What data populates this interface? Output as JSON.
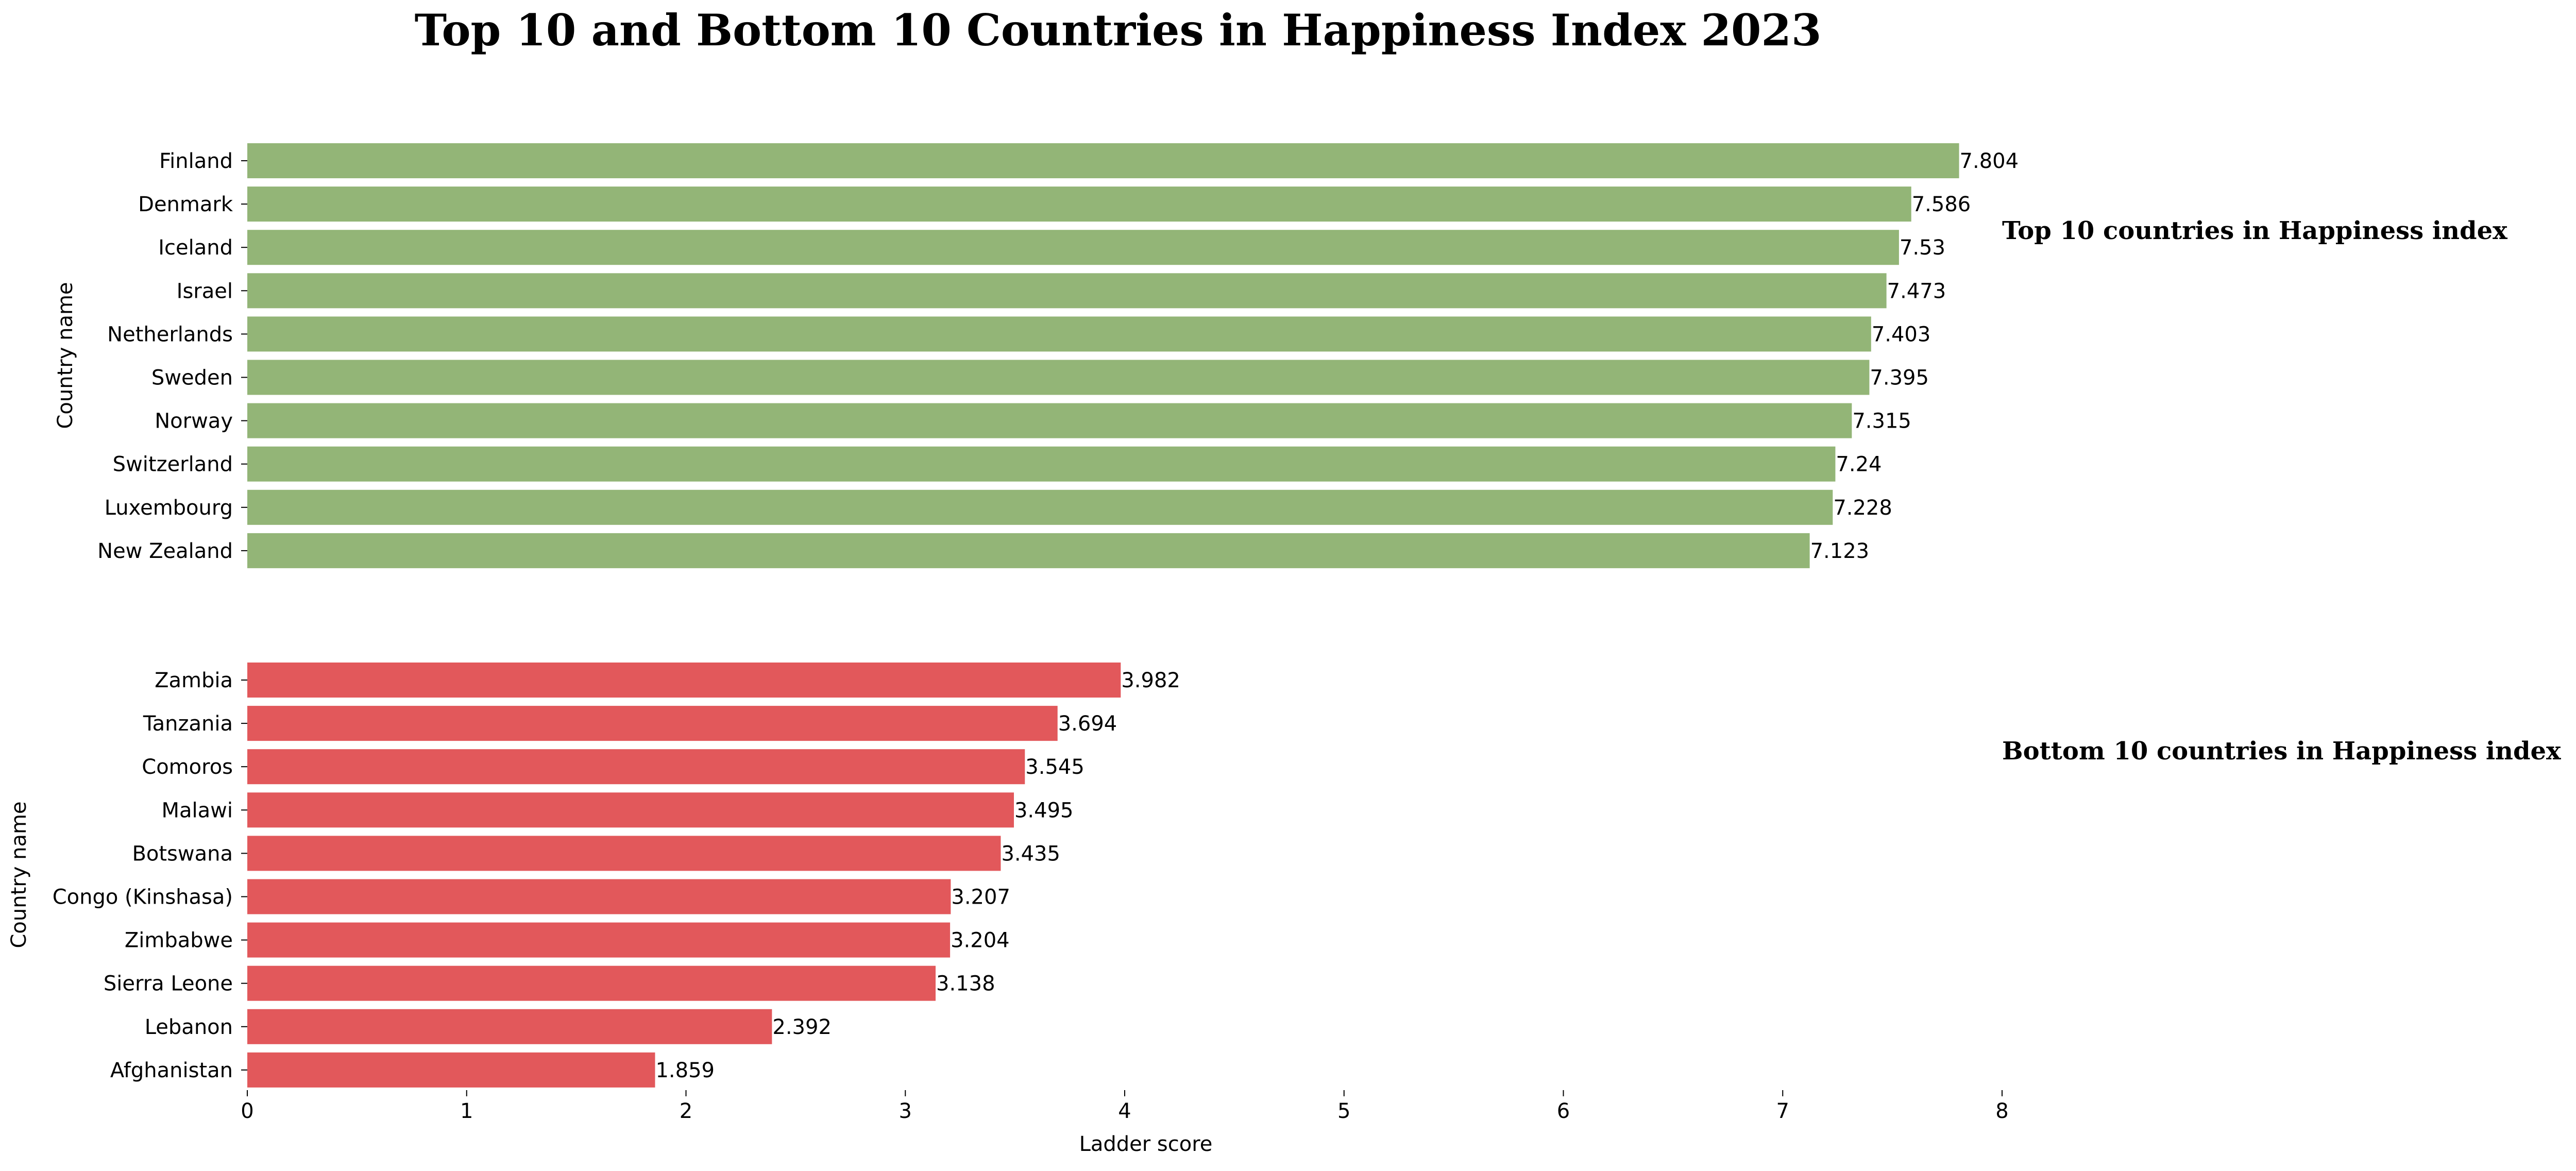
{
  "chart_data": {
    "type": "bar",
    "orientation": "horizontal",
    "title": "Top 10 and Bottom 10 Countries in Happiness Index 2023",
    "xlabel": "Ladder score",
    "xlim": [
      0,
      8
    ],
    "xticks": [
      "0",
      "1",
      "2",
      "3",
      "4",
      "5",
      "6",
      "7",
      "8"
    ],
    "grid": false,
    "panels": [
      {
        "title": "Top 10 countries in Happiness index",
        "ylabel": "Country name",
        "color": "#93b577",
        "categories": [
          "Finland",
          "Denmark",
          "Iceland",
          "Israel",
          "Netherlands",
          "Sweden",
          "Norway",
          "Switzerland",
          "Luxembourg",
          "New Zealand"
        ],
        "values": [
          7.804,
          7.586,
          7.53,
          7.473,
          7.403,
          7.395,
          7.315,
          7.24,
          7.228,
          7.123
        ],
        "value_labels": [
          "7.804",
          "7.586",
          "7.53",
          "7.473",
          "7.403",
          "7.395",
          "7.315",
          "7.24",
          "7.228",
          "7.123"
        ]
      },
      {
        "title": "Bottom 10 countries in Happiness index",
        "ylabel": "Country name",
        "color": "#e2585b",
        "categories": [
          "Zambia",
          "Tanzania",
          "Comoros",
          "Malawi",
          "Botswana",
          "Congo (Kinshasa)",
          "Zimbabwe",
          "Sierra Leone",
          "Lebanon",
          "Afghanistan"
        ],
        "values": [
          3.982,
          3.694,
          3.545,
          3.495,
          3.435,
          3.207,
          3.204,
          3.138,
          2.392,
          1.859
        ],
        "value_labels": [
          "3.982",
          "3.694",
          "3.545",
          "3.495",
          "3.435",
          "3.207",
          "3.204",
          "3.138",
          "2.392",
          "1.859"
        ]
      }
    ]
  }
}
